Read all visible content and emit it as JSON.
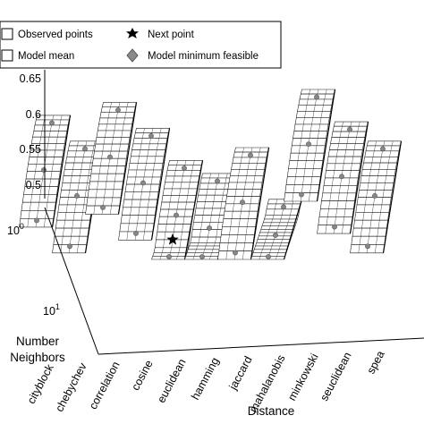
{
  "chart_data": {
    "type": "surface",
    "legend": {
      "placement": "top",
      "entries": [
        {
          "label": "Observed points",
          "marker": "open-circle"
        },
        {
          "label": "Next point",
          "marker": "star"
        },
        {
          "label": "Model mean",
          "marker": "mesh-surface"
        },
        {
          "label": "Model minimum feasible",
          "marker": "diamond"
        }
      ]
    },
    "x_axis": {
      "label": "Distance",
      "categories": [
        "cityblock",
        "chebychev",
        "correlation",
        "cosine",
        "euclidean",
        "hamming",
        "jaccard",
        "mahalanobis",
        "minkowski",
        "seuclidean",
        "spea"
      ]
    },
    "y_axis": {
      "label_lines": [
        "Number",
        "Neighbors"
      ],
      "scale": "log",
      "ticks": [
        {
          "base": "10",
          "exp": "0"
        },
        {
          "base": "10",
          "exp": "1"
        }
      ]
    },
    "z_axis": {
      "ticks": [
        "0.65",
        "0.6",
        "0.55",
        "0.5"
      ],
      "zlim": [
        0.48,
        0.66
      ]
    },
    "surface_height_by_distance": [
      0.62,
      0.58,
      0.64,
      0.6,
      0.55,
      0.53,
      0.57,
      0.49,
      0.66,
      0.61,
      0.58
    ],
    "next_point": {
      "distance": "euclidean"
    },
    "colors": {
      "mesh_fill": "#ffffff",
      "mesh_line": "#222222",
      "marker_fill": "#888888"
    }
  }
}
